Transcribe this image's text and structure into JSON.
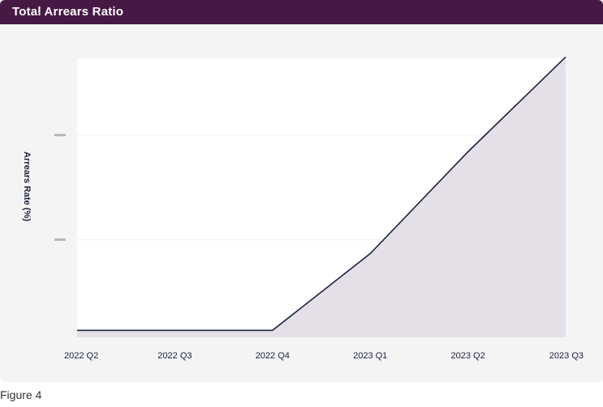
{
  "header": {
    "title": "Total Arrears Ratio"
  },
  "caption": "Figure 4",
  "colors": {
    "header_bg": "#461944",
    "line": "#1b2140",
    "area_fill": "#e5e0e8",
    "plot_bg": "#ffffff",
    "card_bg": "#f4f4f4"
  },
  "chart_data": {
    "type": "area",
    "title": "Total Arrears Ratio",
    "xlabel": "",
    "ylabel": "Arrears Rate (%)",
    "categories": [
      "2022 Q2",
      "2022 Q3",
      "2022 Q4",
      "2023 Q1",
      "2023 Q2",
      "2023 Q3"
    ],
    "series": [
      {
        "values": [
          0.05,
          0.05,
          0.05,
          0.6,
          1.33,
          2.01
        ]
      }
    ],
    "ylim": [
      0,
      2.0
    ],
    "yticks": [
      0.7,
      1.45
    ],
    "ytick_labels": [
      "",
      ""
    ],
    "grid": true,
    "legend": "none"
  }
}
